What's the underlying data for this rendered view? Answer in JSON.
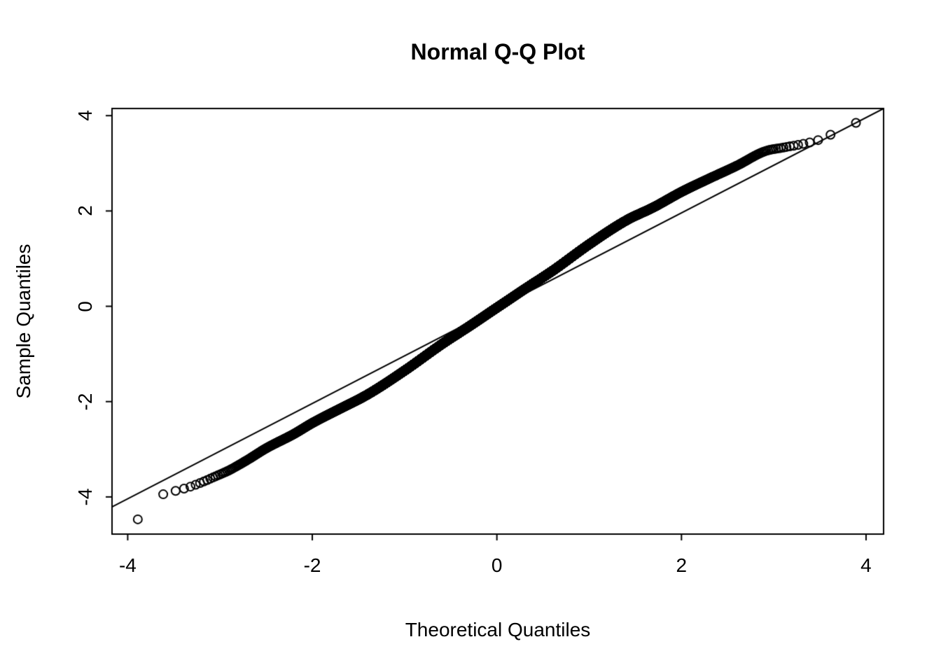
{
  "chart_data": {
    "type": "scatter",
    "subtype": "normal-qq-plot",
    "title": "Normal Q-Q Plot",
    "xlabel": "Theoretical Quantiles",
    "ylabel": "Sample Quantiles",
    "xlim": [
      -4.17,
      4.19
    ],
    "ylim": [
      -4.78,
      4.15
    ],
    "x_ticks": [
      -4,
      -2,
      0,
      2,
      4
    ],
    "x_tick_labels": [
      "-4",
      "-2",
      "0",
      "2",
      "4"
    ],
    "y_ticks": [
      -4,
      -2,
      0,
      2,
      4
    ],
    "y_tick_labels": [
      "-4",
      "-2",
      "0",
      "2",
      "4"
    ],
    "grid": false,
    "legend": null,
    "background_color": "#ffffff",
    "foreground_color": "#000000",
    "marker": "open-circle",
    "marker_color": "#000000",
    "n_points": 10000,
    "reference_line": {
      "slope": 1.0,
      "intercept": -0.04,
      "color": "#000000"
    },
    "qq_curve_anchors": {
      "comment_theoretical_vs_sample_quantiles": "empirical quantile mapping read from the plot; tails fall below the line on the left and above it on the right (heavy-tailed S shape), extreme points return to the line",
      "theoretical": [
        -3.89,
        -3.62,
        -3.45,
        -3.3,
        -3.18,
        -3.05,
        -2.9,
        -2.7,
        -2.5,
        -2.2,
        -2.0,
        -1.7,
        -1.4,
        -1.0,
        -0.6,
        -0.3,
        0.0,
        0.3,
        0.6,
        1.0,
        1.4,
        1.7,
        2.0,
        2.3,
        2.6,
        2.9,
        3.1,
        3.3,
        3.5,
        3.7,
        3.89
      ],
      "sample": [
        -4.47,
        -3.95,
        -3.86,
        -3.77,
        -3.68,
        -3.57,
        -3.44,
        -3.22,
        -2.98,
        -2.68,
        -2.45,
        -2.15,
        -1.85,
        -1.35,
        -0.8,
        -0.42,
        -0.03,
        0.36,
        0.74,
        1.3,
        1.8,
        2.08,
        2.4,
        2.68,
        2.95,
        3.25,
        3.33,
        3.4,
        3.5,
        3.68,
        3.85
      ]
    },
    "extreme_points": {
      "min": [
        -3.89,
        -4.47
      ],
      "max": [
        3.89,
        3.85
      ]
    }
  }
}
